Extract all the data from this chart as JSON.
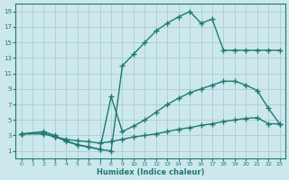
{
  "xlabel": "Humidex (Indice chaleur)",
  "bg_color": "#cce8ec",
  "grid_color": "#aacdd4",
  "line_color": "#1e7a72",
  "xlim": [
    -0.5,
    23.5
  ],
  "ylim": [
    0,
    20
  ],
  "xticks": [
    0,
    1,
    2,
    3,
    4,
    5,
    6,
    7,
    8,
    9,
    10,
    11,
    12,
    13,
    14,
    15,
    16,
    17,
    18,
    19,
    20,
    21,
    22,
    23
  ],
  "yticks": [
    1,
    3,
    5,
    7,
    9,
    11,
    13,
    15,
    17,
    19
  ],
  "line1_x": [
    0,
    2,
    3,
    4,
    5,
    6,
    7,
    8,
    9,
    10,
    11,
    12,
    13,
    14,
    15,
    16,
    17,
    18,
    19,
    20,
    21,
    22,
    23
  ],
  "line1_y": [
    3.2,
    3.5,
    3.0,
    2.2,
    1.8,
    1.5,
    1.2,
    1.0,
    12.0,
    13.5,
    15.0,
    16.5,
    17.5,
    18.3,
    19.0,
    17.5,
    18.0,
    14.0,
    14.0,
    14.0,
    14.0,
    14.0,
    14.0
  ],
  "line2_x": [
    0,
    2,
    3,
    4,
    5,
    6,
    7,
    8,
    9,
    10,
    11,
    12,
    13,
    14,
    15,
    16,
    17,
    18,
    19,
    20,
    21,
    22,
    23
  ],
  "line2_y": [
    3.2,
    3.3,
    2.8,
    2.3,
    1.8,
    1.5,
    1.2,
    8.0,
    3.5,
    4.2,
    5.0,
    6.0,
    7.0,
    7.8,
    8.5,
    9.0,
    9.5,
    10.0,
    10.0,
    9.5,
    8.8,
    6.5,
    4.5
  ],
  "line3_x": [
    0,
    2,
    3,
    4,
    5,
    6,
    7,
    8,
    9,
    10,
    11,
    12,
    13,
    14,
    15,
    16,
    17,
    18,
    19,
    20,
    21,
    22,
    23
  ],
  "line3_y": [
    3.2,
    3.2,
    2.8,
    2.5,
    2.3,
    2.2,
    2.0,
    2.2,
    2.5,
    2.8,
    3.0,
    3.2,
    3.5,
    3.8,
    4.0,
    4.3,
    4.5,
    4.8,
    5.0,
    5.2,
    5.3,
    4.5,
    4.5
  ],
  "marker": "+",
  "markersize": 4,
  "linewidth": 1.0
}
